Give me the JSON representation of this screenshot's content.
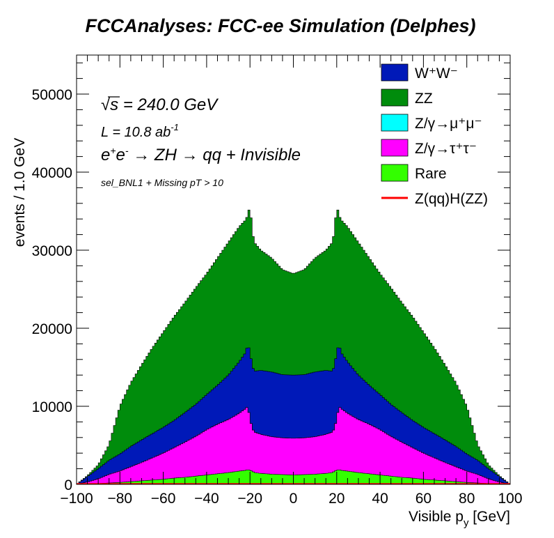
{
  "chart_data": {
    "type": "area",
    "stacked": true,
    "title": "FCCAnalyses: FCC-ee Simulation (Delphes)",
    "xlabel": "Visible p_y [GeV]",
    "ylabel": "events / 1.0 GeV",
    "xlim": [
      -100,
      100
    ],
    "ylim": [
      0,
      55000
    ],
    "x_ticks": [
      -100,
      -80,
      -60,
      -40,
      -20,
      0,
      20,
      40,
      60,
      80,
      100
    ],
    "y_ticks": [
      0,
      10000,
      20000,
      30000,
      40000,
      50000
    ],
    "x_tick_labels": [
      "−100",
      "−80",
      "−60",
      "−40",
      "−20",
      "0",
      "20",
      "40",
      "60",
      "80",
      "100"
    ],
    "y_tick_labels": [
      "0",
      "10000",
      "20000",
      "30000",
      "40000",
      "50000"
    ],
    "grid": false,
    "legend_position": "top-right",
    "annotations": {
      "energy": "√s = 240.0 GeV",
      "lumi": "L = 10.8 ab⁻¹",
      "process": "e⁺e⁻ → ZH → qq + Invisible",
      "selection": "sel_BNL1 + Missing pT > 10"
    },
    "legend": [
      {
        "label": "W⁺W⁻",
        "color": "#0019b8",
        "kind": "fill"
      },
      {
        "label": "ZZ",
        "color": "#008c0c",
        "kind": "fill"
      },
      {
        "label": "Z/γ→μ⁺μ⁻",
        "color": "#00ffff",
        "kind": "fill"
      },
      {
        "label": "Z/γ→τ⁺τ⁻",
        "color": "#ff00ff",
        "kind": "fill"
      },
      {
        "label": "Rare",
        "color": "#33ff00",
        "kind": "fill"
      },
      {
        "label": "Z(qq)H(ZZ)",
        "color": "#ff0000",
        "kind": "line"
      }
    ],
    "x": [
      -100,
      -95,
      -90,
      -85,
      -80,
      -75,
      -70,
      -65,
      -60,
      -55,
      -50,
      -45,
      -40,
      -35,
      -30,
      -25,
      -22,
      -21,
      -20,
      -19,
      -18,
      -15,
      -10,
      -5,
      0,
      5,
      10,
      15,
      18,
      19,
      20,
      21,
      22,
      25,
      30,
      35,
      40,
      45,
      50,
      55,
      60,
      65,
      70,
      75,
      80,
      85,
      90,
      95,
      100
    ],
    "series": [
      {
        "name": "Rare",
        "color": "#33ff00",
        "values": [
          0,
          50,
          100,
          180,
          250,
          350,
          450,
          550,
          650,
          800,
          900,
          1050,
          1200,
          1350,
          1500,
          1700,
          1800,
          1900,
          1800,
          1700,
          1500,
          1400,
          1300,
          1250,
          1200,
          1250,
          1300,
          1400,
          1500,
          1700,
          1800,
          1900,
          1800,
          1700,
          1500,
          1350,
          1200,
          1050,
          900,
          800,
          650,
          550,
          450,
          350,
          250,
          180,
          100,
          50,
          0
        ]
      },
      {
        "name": "Z/γ→τ⁺τ⁻",
        "color": "#ff00ff",
        "values": [
          0,
          250,
          600,
          1100,
          1450,
          1900,
          2350,
          2850,
          3350,
          3900,
          4500,
          5100,
          5800,
          6350,
          6800,
          7400,
          7900,
          8100,
          6600,
          5500,
          5200,
          5000,
          4800,
          4700,
          4700,
          4700,
          4800,
          5000,
          5200,
          5500,
          6600,
          8100,
          7900,
          7400,
          6800,
          6350,
          5800,
          5100,
          4500,
          3900,
          3350,
          2850,
          2350,
          1900,
          1450,
          1100,
          600,
          250,
          0
        ]
      },
      {
        "name": "Z/γ→μ⁺μ⁻",
        "color": "#00ffff",
        "values": [
          0,
          0,
          0,
          0,
          0,
          0,
          0,
          0,
          0,
          0,
          0,
          0,
          0,
          0,
          0,
          0,
          0,
          0,
          0,
          0,
          0,
          0,
          0,
          0,
          0,
          0,
          0,
          0,
          0,
          0,
          0,
          0,
          0,
          0,
          0,
          0,
          0,
          0,
          0,
          0,
          0,
          0,
          0,
          0,
          0,
          0,
          0,
          0,
          0
        ]
      },
      {
        "name": "W⁺W⁻",
        "color": "#0019b8",
        "values": [
          0,
          700,
          1300,
          1800,
          2200,
          2600,
          2900,
          3100,
          3300,
          3500,
          3800,
          4100,
          4500,
          5000,
          5700,
          6600,
          7200,
          8000,
          8600,
          8000,
          7800,
          8200,
          8300,
          8100,
          8100,
          8100,
          8300,
          8200,
          7800,
          8000,
          8600,
          8000,
          7200,
          6600,
          5700,
          5000,
          4500,
          4100,
          3800,
          3500,
          3300,
          3100,
          2900,
          2600,
          2200,
          1800,
          1300,
          700,
          0
        ]
      },
      {
        "name": "ZZ",
        "color": "#008c0c",
        "values": [
          0,
          100,
          500,
          2000,
          6100,
          8150,
          9600,
          11000,
          12200,
          13300,
          14100,
          14950,
          15500,
          16300,
          17000,
          17300,
          17000,
          16500,
          18800,
          17300,
          16500,
          15400,
          14600,
          13450,
          13000,
          13450,
          14600,
          15400,
          16500,
          17300,
          18800,
          16500,
          17000,
          17300,
          17000,
          16300,
          15500,
          14950,
          14100,
          13300,
          12200,
          11000,
          9600,
          8150,
          6100,
          2000,
          500,
          100,
          0
        ]
      }
    ]
  }
}
